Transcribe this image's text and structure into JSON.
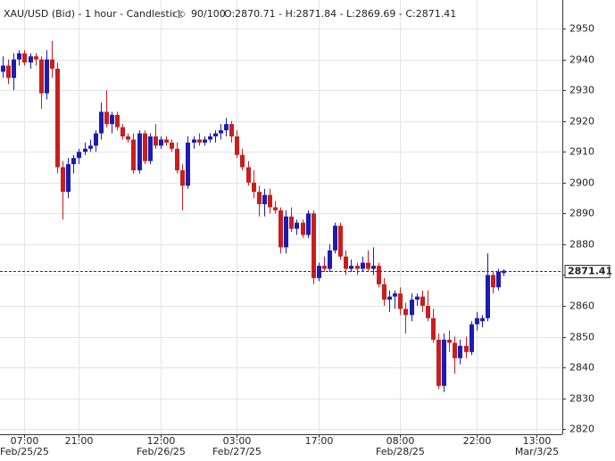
{
  "chart_data": {
    "type": "candlestick",
    "title": "XAU/USD (Bid) - 1 hour - Candlestick",
    "visible_count": "90/100",
    "ohlc_summary": "O:2870.71 - H:2871.84 - L:2869.69 - C:2871.41",
    "current_price": 2871.41,
    "up_color": "#1c1cb0",
    "down_color": "#c81e1e",
    "grid": true,
    "ylim": [
      2818.3,
      2959.3
    ],
    "yticks": [
      2820,
      2830,
      2840,
      2850,
      2860,
      2870,
      2880,
      2890,
      2900,
      2910,
      2920,
      2930,
      2940,
      2950
    ],
    "categories": [
      null,
      null,
      null,
      null,
      "07:00",
      null,
      null,
      null,
      null,
      null,
      null,
      null,
      null,
      null,
      "21:00",
      null,
      null,
      null,
      null,
      null,
      null,
      null,
      null,
      null,
      null,
      null,
      null,
      null,
      null,
      "12:00",
      null,
      null,
      null,
      null,
      null,
      null,
      null,
      null,
      null,
      null,
      null,
      null,
      null,
      "03:00",
      null,
      null,
      null,
      null,
      null,
      null,
      null,
      null,
      null,
      null,
      null,
      null,
      null,
      null,
      "17:00",
      null,
      null,
      null,
      null,
      null,
      null,
      null,
      null,
      null,
      null,
      null,
      null,
      null,
      null,
      "08:00",
      null,
      null,
      null,
      null,
      null,
      null,
      null,
      null,
      null,
      null,
      null,
      null,
      null,
      "22:00",
      null,
      null,
      null,
      null,
      null,
      null,
      null,
      null,
      null,
      null,
      "13:00",
      null,
      null,
      null
    ],
    "dates": [
      null,
      null,
      null,
      null,
      "Feb/25/25",
      null,
      null,
      null,
      null,
      null,
      null,
      null,
      null,
      null,
      null,
      null,
      null,
      null,
      null,
      null,
      null,
      null,
      null,
      null,
      null,
      null,
      null,
      null,
      null,
      "Feb/26/25",
      null,
      null,
      null,
      null,
      null,
      null,
      null,
      null,
      null,
      null,
      null,
      null,
      null,
      "Feb/27/25",
      null,
      null,
      null,
      null,
      null,
      null,
      null,
      null,
      null,
      null,
      null,
      null,
      null,
      null,
      null,
      null,
      null,
      null,
      null,
      null,
      null,
      null,
      null,
      null,
      null,
      null,
      null,
      null,
      null,
      "Feb/28/25",
      null,
      null,
      null,
      null,
      null,
      null,
      null,
      null,
      null,
      null,
      null,
      null,
      null,
      null,
      null,
      null,
      null,
      null,
      null,
      null,
      null,
      null,
      null,
      null,
      "Mar/3/25",
      null,
      null,
      null
    ],
    "open": [
      2936,
      2938,
      2934,
      2940,
      2942,
      2939,
      2941,
      2940,
      2929,
      2940,
      2937,
      2905,
      2897,
      2906,
      2908,
      2910,
      2911,
      2912,
      2916,
      2923,
      2919,
      2922,
      2918,
      2915,
      2914,
      2904,
      2916,
      2907,
      2915,
      2912,
      2914,
      2913,
      2911,
      2904,
      2899,
      2913,
      2914,
      2913,
      2914,
      2915,
      2916,
      2917,
      2919,
      2915,
      2909,
      2905,
      2900,
      2897,
      2893,
      2896,
      2892,
      2891,
      2879,
      2889,
      2885,
      2887,
      2883,
      2890,
      2869,
      2873,
      2872,
      2878,
      2886,
      2876,
      2872,
      2873,
      2872,
      2874,
      2872,
      2873,
      2867,
      2862,
      2863,
      2864,
      2859,
      2857,
      2862,
      2863,
      2860,
      2856,
      2849,
      2834,
      2849,
      2848,
      2843,
      2847,
      2845,
      2854,
      2855,
      2856,
      2870,
      2866,
      2870.71,
      null,
      null,
      null,
      null,
      null,
      null,
      null,
      null,
      null
    ],
    "high": [
      2941,
      2940,
      2942,
      2943,
      2943,
      2942,
      2942,
      2941,
      2943,
      2946,
      2939,
      2907,
      2908,
      2909,
      2911,
      2913,
      2914,
      2917,
      2926,
      2930,
      2923,
      2923,
      2919,
      2916,
      2916,
      2917,
      2917,
      2916,
      2919,
      2915,
      2915,
      2914,
      2913,
      2906,
      2915,
      2915,
      2916,
      2915,
      2916,
      2917,
      2919,
      2921,
      2920,
      2917,
      2911,
      2907,
      2904,
      2899,
      2898,
      2898,
      2894,
      2892,
      2891,
      2892,
      2888,
      2888,
      2891,
      2891,
      2874,
      2876,
      2880,
      2887,
      2887,
      2878,
      2875,
      2874,
      2876,
      2878,
      2879,
      2874,
      2869,
      2865,
      2865,
      2866,
      2861,
      2864,
      2864,
      2865,
      2865,
      2859,
      2851,
      2851,
      2852,
      2850,
      2849,
      2850,
      2855,
      2858,
      2857,
      2877,
      2871,
      2872,
      2871.84,
      null,
      null,
      null,
      null,
      null,
      null,
      null,
      null,
      null
    ],
    "low": [
      2934,
      2932,
      2930,
      2938,
      2938,
      2937,
      2938,
      2924,
      2927,
      2934,
      2903,
      2888,
      2895,
      2903,
      2906,
      2909,
      2910,
      2910,
      2914,
      2918,
      2916,
      2917,
      2914,
      2913,
      2903,
      2903,
      2906,
      2906,
      2911,
      2911,
      2912,
      2910,
      2903,
      2891,
      2898,
      2911,
      2912,
      2912,
      2913,
      2913,
      2914,
      2915,
      2913,
      2908,
      2904,
      2899,
      2895,
      2889,
      2889,
      2890,
      2890,
      2877,
      2877,
      2884,
      2883,
      2882,
      2882,
      2867,
      2868,
      2871,
      2871,
      2877,
      2875,
      2870,
      2871,
      2870,
      2871,
      2871,
      2870,
      2866,
      2860,
      2858,
      2859,
      2857,
      2851,
      2855,
      2860,
      2858,
      2855,
      2848,
      2833,
      2832,
      2845,
      2838,
      2841,
      2843,
      2844,
      2852,
      2853,
      2855,
      2864,
      2865,
      2869.69,
      null,
      null,
      null,
      null,
      null,
      null,
      null,
      null,
      null
    ],
    "close": [
      2938,
      2934,
      2940,
      2942,
      2939,
      2941,
      2940,
      2929,
      2940,
      2937,
      2905,
      2897,
      2906,
      2908,
      2910,
      2911,
      2912,
      2916,
      2923,
      2919,
      2922,
      2918,
      2915,
      2914,
      2904,
      2916,
      2907,
      2915,
      2912,
      2914,
      2913,
      2911,
      2904,
      2899,
      2913,
      2914,
      2913,
      2914,
      2915,
      2916,
      2917,
      2919,
      2915,
      2909,
      2905,
      2900,
      2897,
      2893,
      2896,
      2892,
      2891,
      2879,
      2889,
      2885,
      2887,
      2883,
      2890,
      2869,
      2873,
      2872,
      2878,
      2886,
      2876,
      2872,
      2873,
      2872,
      2874,
      2872,
      2873,
      2867,
      2862,
      2863,
      2864,
      2859,
      2857,
      2862,
      2863,
      2860,
      2856,
      2849,
      2834,
      2849,
      2848,
      2843,
      2847,
      2845,
      2854,
      2856,
      2856,
      2870,
      2866,
      2871,
      2871.41,
      null,
      null,
      null,
      null,
      null,
      null,
      null,
      null,
      null
    ]
  }
}
